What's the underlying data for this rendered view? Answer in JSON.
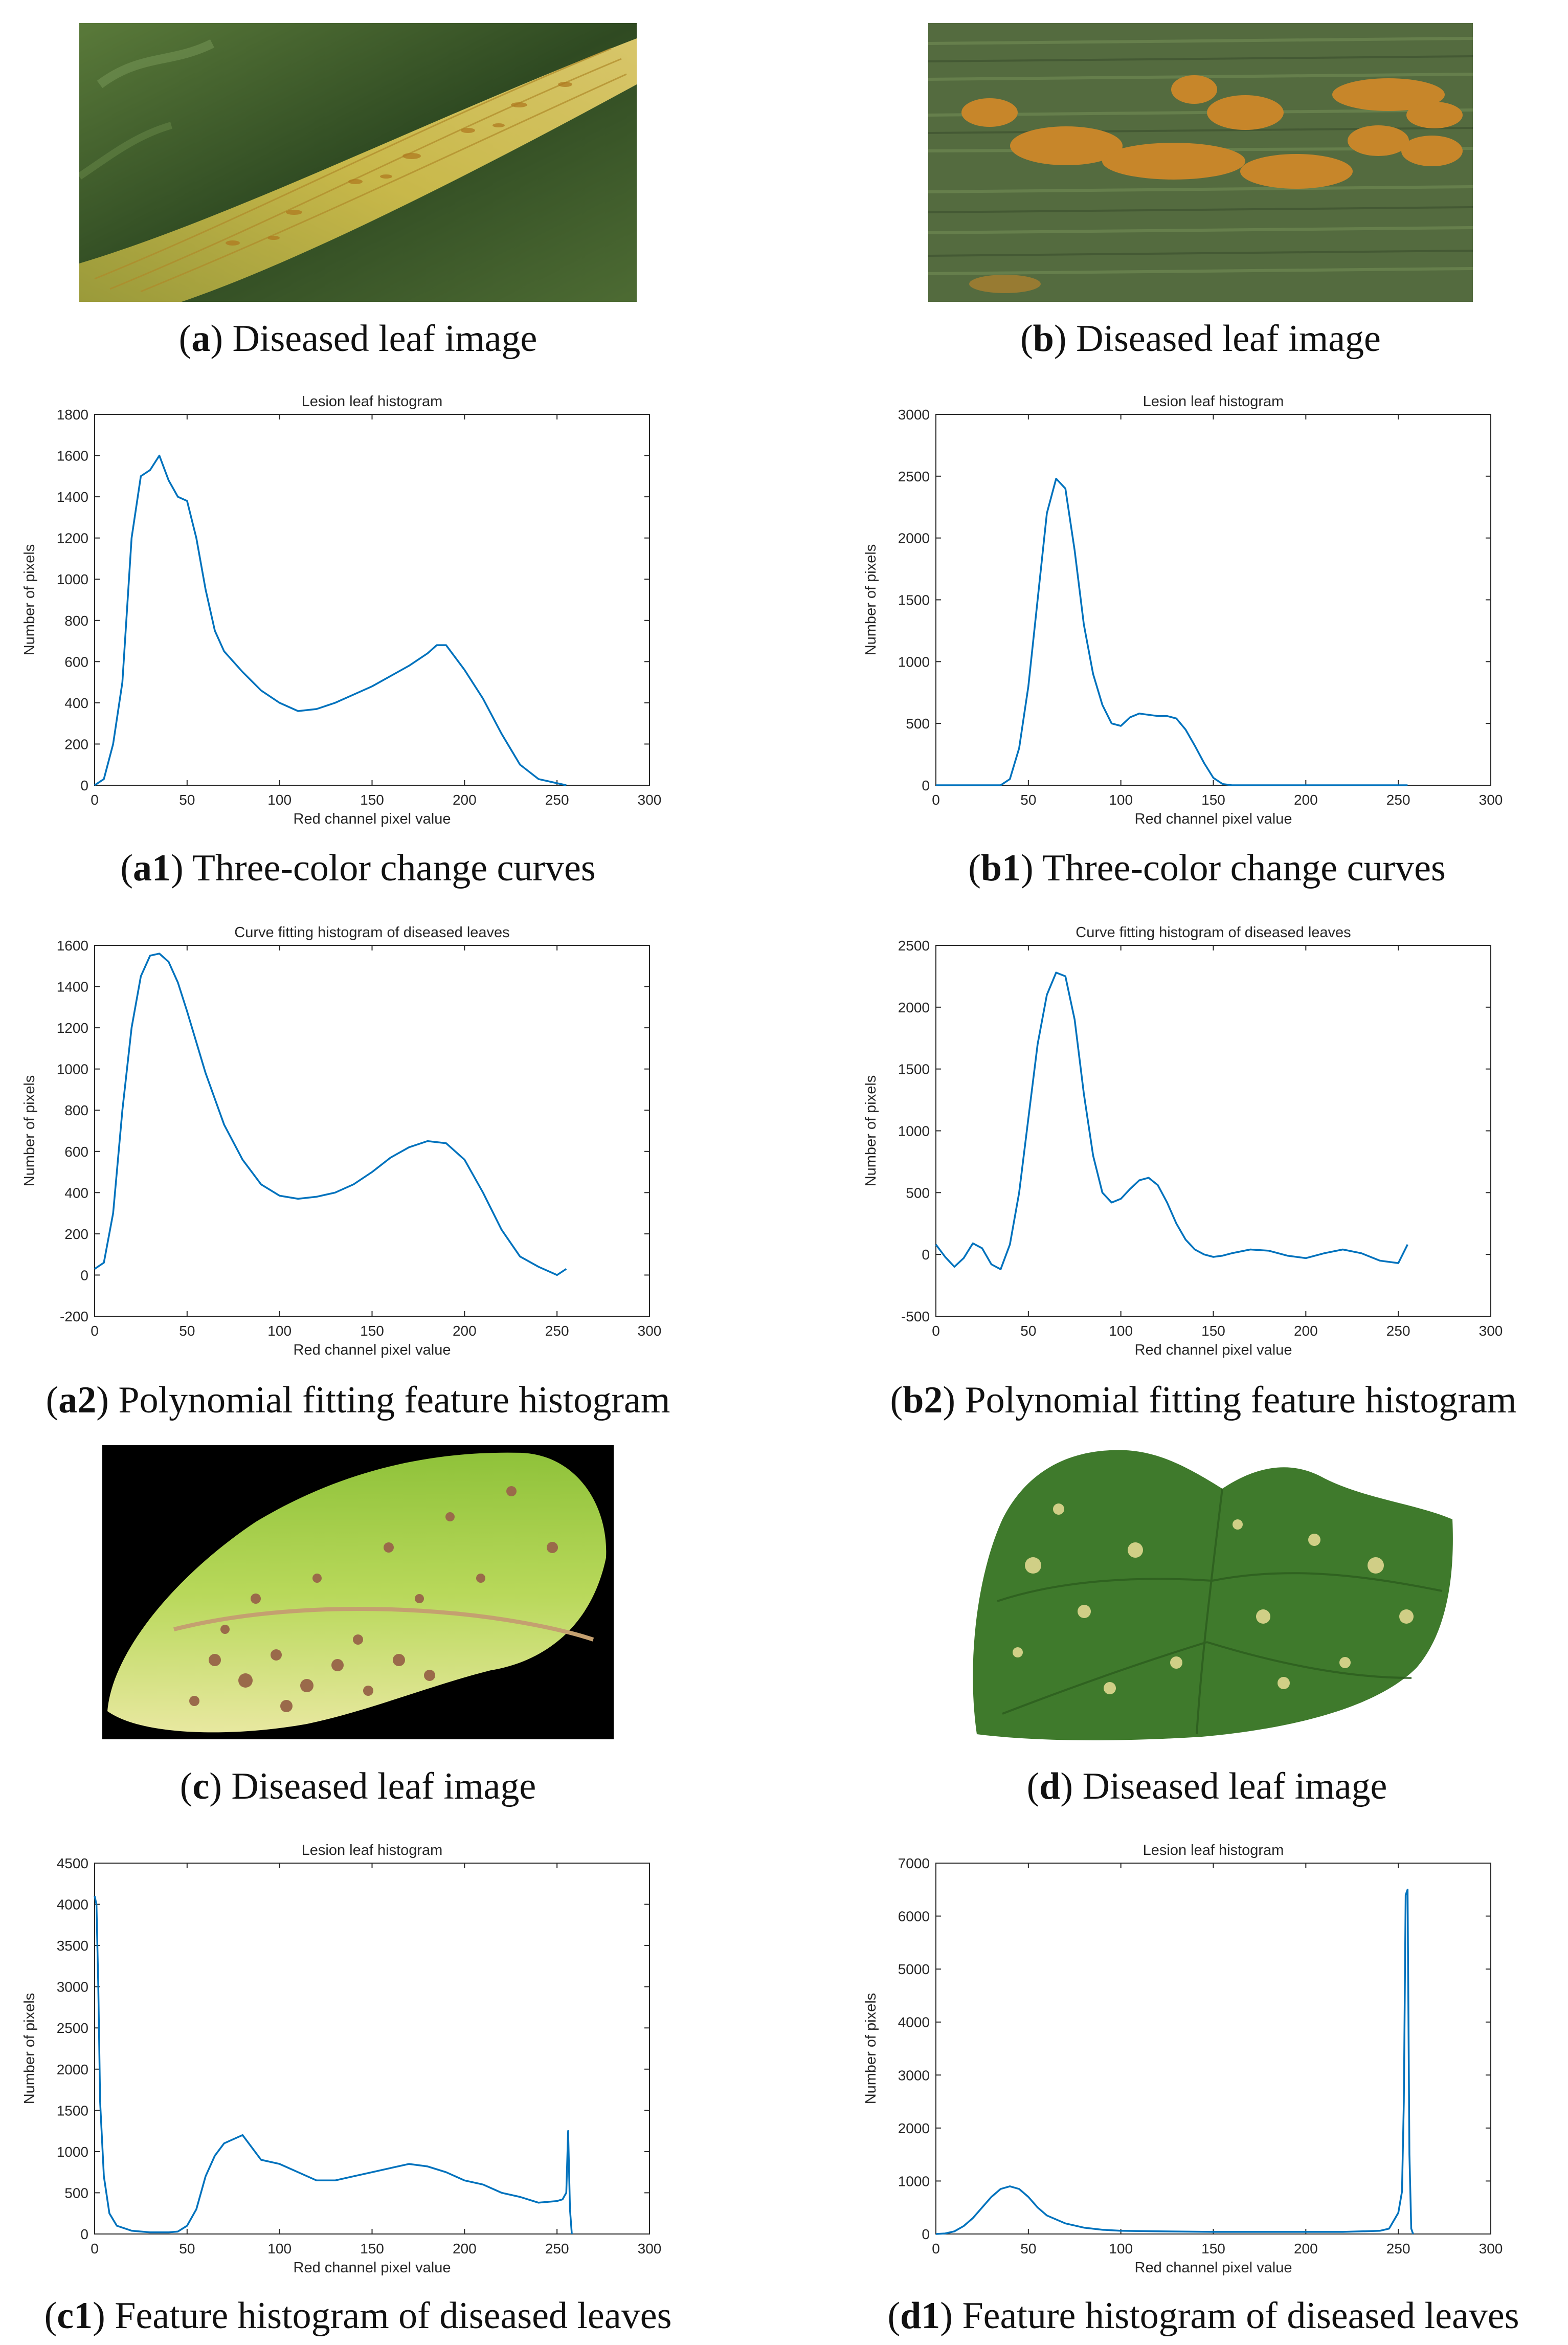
{
  "colors": {
    "line": "#0072bd",
    "axis": "#262626"
  },
  "images": [
    {
      "id": "a",
      "label": "a",
      "caption": " Diseased leaf image",
      "subject": "wheat-leaf-with-yellow-rust-streaks"
    },
    {
      "id": "b",
      "label": "b",
      "caption": " Diseased leaf image",
      "subject": "wheat-leaf-with-orange-rust-pustules"
    },
    {
      "id": "c",
      "label": "c",
      "caption": " Diseased leaf image",
      "subject": "leaf-with-brown-spots-on-black-background"
    },
    {
      "id": "d",
      "label": "d",
      "caption": " Diseased leaf image",
      "subject": "cucumber-leaf-with-pale-spots"
    }
  ],
  "chart_data": [
    {
      "id": "a1",
      "type": "line",
      "label": "a1",
      "caption": " Three-color change curves",
      "title": "Lesion leaf histogram",
      "xlabel": "Red channel pixel value",
      "ylabel": "Number of pixels",
      "xlim": [
        0,
        300
      ],
      "ylim": [
        0,
        1800
      ],
      "xticks": [
        0,
        50,
        100,
        150,
        200,
        250,
        300
      ],
      "yticks": [
        0,
        200,
        400,
        600,
        800,
        1000,
        1200,
        1400,
        1600,
        1800
      ],
      "x": [
        0,
        5,
        10,
        15,
        20,
        25,
        30,
        35,
        40,
        45,
        50,
        55,
        60,
        65,
        70,
        80,
        90,
        100,
        110,
        120,
        130,
        140,
        150,
        160,
        170,
        180,
        185,
        190,
        195,
        200,
        210,
        220,
        230,
        240,
        250,
        255
      ],
      "values": [
        0,
        30,
        200,
        500,
        1200,
        1500,
        1530,
        1600,
        1480,
        1400,
        1380,
        1200,
        950,
        750,
        650,
        550,
        460,
        400,
        360,
        370,
        400,
        440,
        480,
        530,
        580,
        640,
        680,
        680,
        620,
        560,
        420,
        250,
        100,
        30,
        10,
        0
      ]
    },
    {
      "id": "b1",
      "type": "line",
      "label": "b1",
      "caption": " Three-color change curves",
      "title": "Lesion leaf histogram",
      "xlabel": "Red channel pixel value",
      "ylabel": "Number of pixels",
      "xlim": [
        0,
        300
      ],
      "ylim": [
        0,
        3000
      ],
      "xticks": [
        0,
        50,
        100,
        150,
        200,
        250,
        300
      ],
      "yticks": [
        0,
        500,
        1000,
        1500,
        2000,
        2500,
        3000
      ],
      "x": [
        0,
        30,
        35,
        40,
        45,
        50,
        55,
        60,
        65,
        70,
        75,
        80,
        85,
        90,
        95,
        100,
        105,
        110,
        115,
        120,
        125,
        130,
        135,
        140,
        145,
        150,
        155,
        160,
        180,
        200,
        255
      ],
      "values": [
        0,
        0,
        0,
        50,
        300,
        800,
        1500,
        2200,
        2480,
        2400,
        1900,
        1300,
        900,
        650,
        500,
        480,
        550,
        580,
        570,
        560,
        560,
        540,
        450,
        320,
        180,
        60,
        10,
        0,
        0,
        0,
        0
      ]
    },
    {
      "id": "a2",
      "type": "line",
      "label": "a2",
      "caption": " Polynomial fitting feature histogram",
      "title": "Curve fitting histogram of diseased leaves",
      "xlabel": "Red channel pixel value",
      "ylabel": "Number of pixels",
      "xlim": [
        0,
        300
      ],
      "ylim": [
        -200,
        1600
      ],
      "xticks": [
        0,
        50,
        100,
        150,
        200,
        250,
        300
      ],
      "yticks": [
        -200,
        0,
        200,
        400,
        600,
        800,
        1000,
        1200,
        1400,
        1600
      ],
      "x": [
        0,
        5,
        10,
        15,
        20,
        25,
        30,
        35,
        40,
        45,
        50,
        60,
        70,
        80,
        90,
        100,
        110,
        120,
        130,
        140,
        150,
        160,
        170,
        180,
        190,
        200,
        210,
        220,
        230,
        240,
        250,
        255
      ],
      "values": [
        30,
        60,
        300,
        800,
        1200,
        1450,
        1550,
        1560,
        1520,
        1420,
        1280,
        980,
        730,
        560,
        440,
        385,
        370,
        380,
        400,
        440,
        500,
        570,
        620,
        650,
        640,
        560,
        400,
        220,
        90,
        40,
        0,
        30
      ]
    },
    {
      "id": "b2",
      "type": "line",
      "label": "b2",
      "caption": " Polynomial fitting feature histogram",
      "title": "Curve fitting histogram of diseased leaves",
      "xlabel": "Red channel pixel value",
      "ylabel": "Number of pixels",
      "xlim": [
        0,
        300
      ],
      "ylim": [
        -500,
        2500
      ],
      "xticks": [
        0,
        50,
        100,
        150,
        200,
        250,
        300
      ],
      "yticks": [
        -500,
        0,
        500,
        1000,
        1500,
        2000,
        2500
      ],
      "x": [
        0,
        5,
        10,
        15,
        20,
        25,
        30,
        35,
        40,
        45,
        50,
        55,
        60,
        65,
        70,
        75,
        80,
        85,
        90,
        95,
        100,
        105,
        110,
        115,
        120,
        125,
        130,
        135,
        140,
        145,
        150,
        155,
        160,
        170,
        180,
        190,
        200,
        210,
        220,
        230,
        240,
        250,
        255
      ],
      "values": [
        80,
        -20,
        -100,
        -30,
        90,
        50,
        -80,
        -120,
        80,
        500,
        1100,
        1700,
        2100,
        2280,
        2250,
        1900,
        1300,
        800,
        500,
        420,
        450,
        530,
        600,
        620,
        560,
        420,
        250,
        120,
        40,
        0,
        -20,
        -10,
        10,
        40,
        30,
        -10,
        -30,
        10,
        40,
        10,
        -50,
        -70,
        80
      ]
    },
    {
      "id": "c1",
      "type": "line",
      "label": "c1",
      "caption": " Feature histogram of diseased leaves",
      "title": "Lesion leaf histogram",
      "xlabel": "Red channel pixel value",
      "ylabel": "Number of pixels",
      "xlim": [
        0,
        300
      ],
      "ylim": [
        0,
        4500
      ],
      "xticks": [
        0,
        50,
        100,
        150,
        200,
        250,
        300
      ],
      "yticks": [
        0,
        500,
        1000,
        1500,
        2000,
        2500,
        3000,
        3500,
        4000,
        4500
      ],
      "x": [
        0,
        1,
        2,
        3,
        5,
        8,
        12,
        20,
        30,
        40,
        45,
        50,
        55,
        60,
        65,
        70,
        75,
        80,
        85,
        90,
        100,
        110,
        120,
        130,
        140,
        150,
        160,
        170,
        180,
        190,
        200,
        210,
        220,
        230,
        240,
        250,
        253,
        255,
        256,
        257,
        258
      ],
      "values": [
        4100,
        4000,
        3000,
        1600,
        700,
        250,
        100,
        40,
        20,
        20,
        30,
        100,
        300,
        700,
        950,
        1100,
        1150,
        1200,
        1050,
        900,
        850,
        750,
        650,
        650,
        700,
        750,
        800,
        850,
        820,
        750,
        650,
        600,
        500,
        450,
        380,
        400,
        420,
        500,
        1250,
        300,
        0
      ]
    },
    {
      "id": "d1",
      "type": "line",
      "label": "d1",
      "caption": " Feature histogram of diseased leaves",
      "title": "Lesion leaf histogram",
      "xlabel": "Red channel pixel value",
      "ylabel": "Number of pixels",
      "xlim": [
        0,
        300
      ],
      "ylim": [
        0,
        7000
      ],
      "xticks": [
        0,
        50,
        100,
        150,
        200,
        250,
        300
      ],
      "yticks": [
        0,
        1000,
        2000,
        3000,
        4000,
        5000,
        6000,
        7000
      ],
      "x": [
        0,
        5,
        10,
        15,
        20,
        25,
        30,
        35,
        40,
        45,
        50,
        55,
        60,
        70,
        80,
        90,
        100,
        120,
        150,
        180,
        200,
        220,
        240,
        245,
        250,
        252,
        253,
        254,
        255,
        256,
        257,
        258
      ],
      "values": [
        0,
        10,
        50,
        150,
        300,
        500,
        700,
        850,
        900,
        850,
        700,
        500,
        350,
        200,
        120,
        80,
        60,
        50,
        40,
        40,
        40,
        40,
        60,
        100,
        400,
        800,
        2500,
        6400,
        6500,
        1500,
        100,
        0
      ]
    }
  ]
}
